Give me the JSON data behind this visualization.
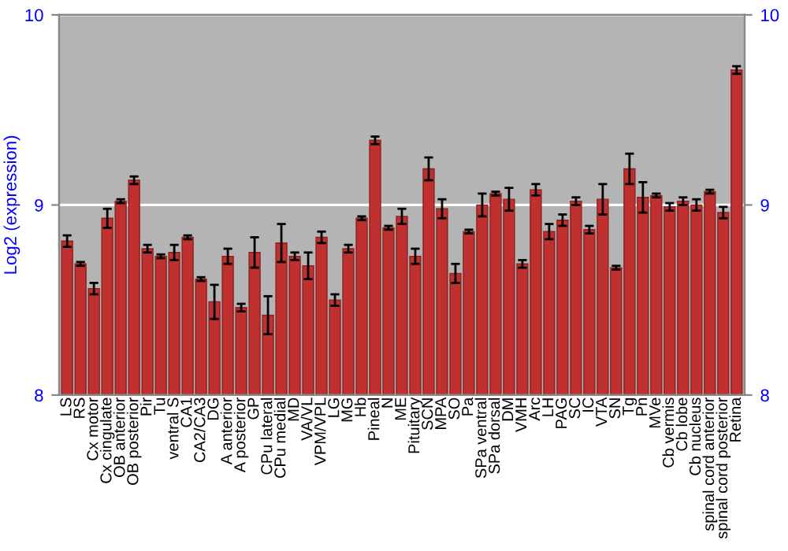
{
  "chart_data": {
    "type": "bar",
    "ylabel": "Log2 (expression)",
    "categories": [
      "LS",
      "RS",
      "Cx motor",
      "Cx cingulate",
      "OB anterior",
      "OB posterior",
      "Pir",
      "Tu",
      "ventral S",
      "CA1",
      "CA2/CA3",
      "DG",
      "A anterior",
      "A posterior",
      "GP",
      "CPu lateral",
      "CPu medial",
      "MD",
      "VA/VL",
      "VPM/VPL",
      "LG",
      "MG",
      "Hb",
      "Pineal",
      "N",
      "ME",
      "Pituitary",
      "SCN",
      "MPA",
      "SO",
      "Pa",
      "SPa ventral",
      "SPa dorsal",
      "DM",
      "VMH",
      "Arc",
      "LH",
      "PAG",
      "SC",
      "IC",
      "VTA",
      "SN",
      "Tg",
      "Pn",
      "MVe",
      "Cb vermis",
      "Cb lobe",
      "Cb nucleus",
      "spinal cord anterior",
      "spinal cord posterior",
      "Retina"
    ],
    "series": [
      {
        "color": "#c0302e",
        "values": [
          8.81,
          8.69,
          8.56,
          8.93,
          9.02,
          9.13,
          8.77,
          8.73,
          8.75,
          8.83,
          8.61,
          8.49,
          8.73,
          8.46,
          8.75,
          8.42,
          8.8,
          8.73,
          8.68,
          8.83,
          8.5,
          8.77,
          8.93,
          9.34,
          8.88,
          8.94,
          8.73,
          9.19,
          8.98,
          8.64,
          8.86,
          9.0,
          9.06,
          9.03,
          8.69,
          9.08,
          8.86,
          8.92,
          9.02,
          8.87,
          9.03,
          8.67,
          9.19,
          9.04,
          9.05,
          8.99,
          9.02,
          9.0,
          9.07,
          8.96,
          9.71
        ],
        "errors": [
          0.03,
          0.01,
          0.03,
          0.05,
          0.01,
          0.02,
          0.02,
          0.01,
          0.04,
          0.01,
          0.01,
          0.09,
          0.04,
          0.02,
          0.08,
          0.1,
          0.1,
          0.02,
          0.07,
          0.03,
          0.03,
          0.02,
          0.01,
          0.02,
          0.01,
          0.04,
          0.04,
          0.06,
          0.05,
          0.05,
          0.01,
          0.06,
          0.01,
          0.06,
          0.02,
          0.03,
          0.04,
          0.03,
          0.02,
          0.02,
          0.08,
          0.01,
          0.08,
          0.08,
          0.01,
          0.02,
          0.02,
          0.03,
          0.01,
          0.03,
          0.02
        ]
      }
    ],
    "ylim": [
      8,
      10
    ],
    "yticks": [
      8,
      9,
      10
    ],
    "y2lim": [
      8,
      10
    ],
    "y2ticks": [
      8,
      9,
      10
    ],
    "grid": "y"
  }
}
